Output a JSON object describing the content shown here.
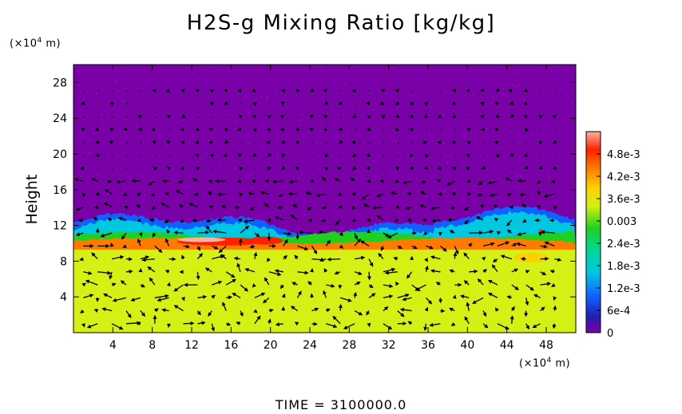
{
  "chart_data": {
    "type": "heatmap",
    "title": "H2S-g Mixing Ratio [kg/kg]",
    "ylabel": "Height",
    "y_units": "(×10",
    "x_units": "(×10",
    "units_exp": "4",
    "units_suffix": " m)",
    "xlim": [
      0,
      51
    ],
    "ylim": [
      0,
      30
    ],
    "x_ticks": [
      4,
      8,
      12,
      16,
      20,
      24,
      28,
      32,
      36,
      40,
      44,
      48
    ],
    "y_ticks": [
      4,
      8,
      12,
      16,
      20,
      24,
      28
    ],
    "colorbar": {
      "min": 0,
      "max": 0.0054,
      "tick_values": [
        0,
        0.0006,
        0.0012,
        0.0018,
        0.0024,
        0.003,
        0.0036,
        0.0042,
        0.0048
      ],
      "tick_labels": [
        "0",
        "6e-4",
        "1.2e-3",
        "1.8e-3",
        "2.4e-3",
        "0.003",
        "3.6e-3",
        "4.2e-3",
        "4.8e-3"
      ]
    },
    "field_regions": [
      {
        "layer": "lower",
        "height_range": [
          0,
          9.5
        ],
        "value": 0.0034
      },
      {
        "layer": "interface",
        "height_range": [
          9.5,
          10.5
        ],
        "value": 0.0042
      },
      {
        "layer": "mixing zone",
        "height_range": [
          10.5,
          13
        ],
        "value": 0.0022
      },
      {
        "layer": "upper",
        "height_range": [
          13,
          30
        ],
        "value": 0
      }
    ],
    "colors": {
      "upper": "#7a00a8",
      "lower": "#d4f014",
      "interface_orange": "#ff7a00",
      "interface_red": "#ff2000",
      "peak_pink": "#ffb0a0",
      "green": "#20d020",
      "cyan": "#00c8e0",
      "blue": "#1060ff",
      "vector": "#000000"
    },
    "vectors": "wind field arrows overlaid",
    "footer": "TIME  =  3100000.0"
  }
}
